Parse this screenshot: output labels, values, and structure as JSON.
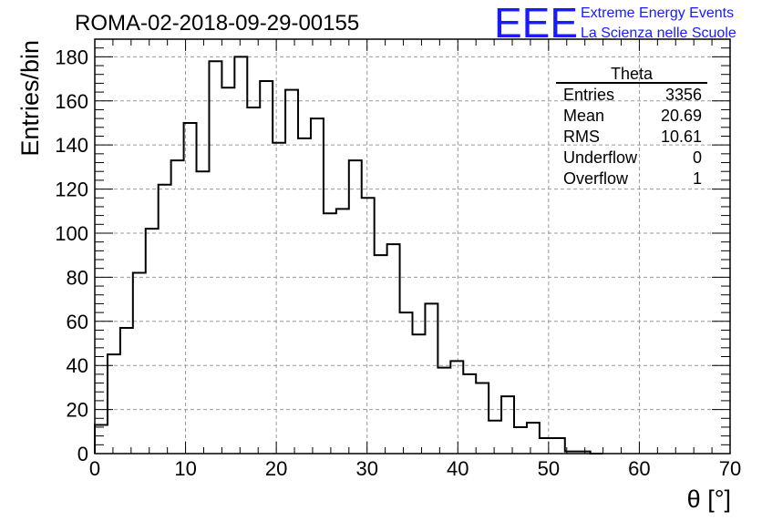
{
  "chart_data": {
    "type": "bar",
    "title": "ROMA-02-2018-09-29-00155",
    "xlabel": "θ [°]",
    "ylabel": "Entries/bin",
    "xlim": [
      0,
      70
    ],
    "ylim": [
      0,
      188
    ],
    "x_ticks": [
      "0",
      "10",
      "20",
      "30",
      "40",
      "50",
      "60",
      "70"
    ],
    "y_ticks": [
      "0",
      "20",
      "40",
      "60",
      "80",
      "100",
      "120",
      "140",
      "160",
      "180"
    ],
    "grid": true,
    "bin_width": 1.4,
    "bin_start": 0,
    "values": [
      13,
      45,
      57,
      82,
      102,
      122,
      133,
      150,
      128,
      178,
      166,
      180,
      157,
      169,
      141,
      165,
      143,
      152,
      109,
      111,
      133,
      116,
      90,
      95,
      64,
      54,
      68,
      39,
      42,
      36,
      32,
      15,
      26,
      12,
      14,
      7,
      7,
      1,
      1,
      0
    ],
    "stats": {
      "title": "Theta",
      "rows": [
        {
          "label": "Entries",
          "value": "3356"
        },
        {
          "label": "Mean",
          "value": "20.69"
        },
        {
          "label": "RMS",
          "value": "10.61"
        },
        {
          "label": "Underflow",
          "value": "0"
        },
        {
          "label": "Overflow",
          "value": "1"
        }
      ]
    }
  },
  "logo": {
    "mark": "EEE",
    "line1": "Extreme Energy Events",
    "line2": "La Scienza nelle Scuole",
    "color": "#1a1aff"
  }
}
